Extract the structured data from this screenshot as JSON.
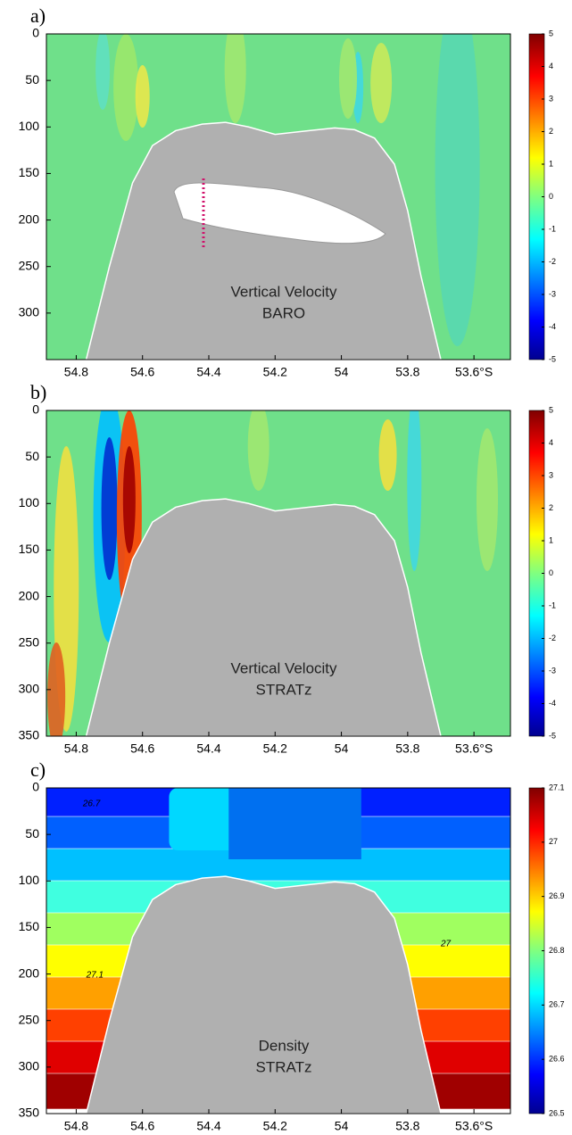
{
  "chart_data": [
    {
      "type": "contour",
      "label": "a)",
      "annotations": [
        "Vertical Velocity",
        "BARO"
      ],
      "xlim": [
        54.89,
        53.49
      ],
      "xticks": [
        54.8,
        54.6,
        54.4,
        54.2,
        54,
        53.8,
        {
          "value": 53.6,
          "label": "53.6°S"
        }
      ],
      "ylim": [
        0,
        350
      ],
      "yticks": [
        0,
        50,
        100,
        150,
        200,
        250,
        300
      ],
      "colorbar": {
        "lim": [
          -5,
          5
        ],
        "ticks": [
          5,
          4,
          3,
          2,
          1,
          0,
          -1,
          -2,
          -3,
          -4,
          -5
        ]
      }
    },
    {
      "type": "contour",
      "label": "b)",
      "annotations": [
        "Vertical Velocity",
        "STRATz"
      ],
      "xlim": [
        54.89,
        53.49
      ],
      "xticks": [
        54.8,
        54.6,
        54.4,
        54.2,
        54,
        53.8,
        {
          "value": 53.6,
          "label": "53.6°S"
        }
      ],
      "ylim": [
        0,
        350
      ],
      "yticks": [
        0,
        50,
        100,
        150,
        200,
        250,
        300,
        350
      ],
      "colorbar": {
        "lim": [
          -5,
          5
        ],
        "ticks": [
          5,
          4,
          3,
          2,
          1,
          0,
          -1,
          -2,
          -3,
          -4,
          -5
        ]
      }
    },
    {
      "type": "density",
      "label": "c)",
      "annotations": [
        "Density",
        "STRATz"
      ],
      "contour_labels": [
        "26.7",
        "27.1",
        "27"
      ],
      "xlim": [
        54.89,
        53.49
      ],
      "xticks": [
        54.8,
        54.6,
        54.4,
        54.2,
        54,
        53.8,
        {
          "value": 53.6,
          "label": "53.6°S"
        }
      ],
      "ylim": [
        0,
        350
      ],
      "yticks": [
        0,
        50,
        100,
        150,
        200,
        250,
        300,
        350
      ],
      "colorbar": {
        "lim": [
          26.5,
          27.1
        ],
        "ticks": [
          27.1,
          27,
          26.9,
          26.8,
          26.7,
          26.6,
          26.5
        ]
      }
    }
  ]
}
